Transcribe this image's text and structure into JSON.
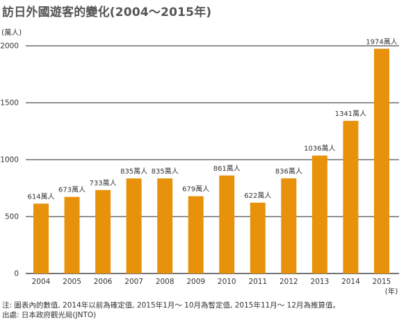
{
  "chart_data": {
    "type": "bar",
    "title": "訪日外國遊客的變化(2004〜2015年)",
    "ylabel": "(萬人)",
    "xlabel": "(年)",
    "categories": [
      "2004",
      "2005",
      "2006",
      "2007",
      "2008",
      "2009",
      "2010",
      "2011",
      "2012",
      "2013",
      "2014",
      "2015"
    ],
    "values": [
      614,
      673,
      733,
      835,
      835,
      679,
      861,
      622,
      836,
      1036,
      1341,
      1974
    ],
    "value_labels": [
      "614萬人",
      "673萬人",
      "733萬人",
      "835萬人",
      "835萬人",
      "679萬人",
      "861萬人",
      "622萬人",
      "836萬人",
      "1036萬人",
      "1341萬人",
      "1974萬人"
    ],
    "ylim": [
      0,
      2000
    ],
    "yticks": [
      0,
      500,
      1000,
      1500,
      2000
    ],
    "grid": true,
    "bar_color": "#e8920b"
  },
  "notes": {
    "line1": "注: 圖表內的數值, 2014年以前為確定值, 2015年1月〜 10月為暫定值, 2015年11月〜 12月為推算值。",
    "line2": "出處: 日本政府觀光局(JNTO)"
  }
}
